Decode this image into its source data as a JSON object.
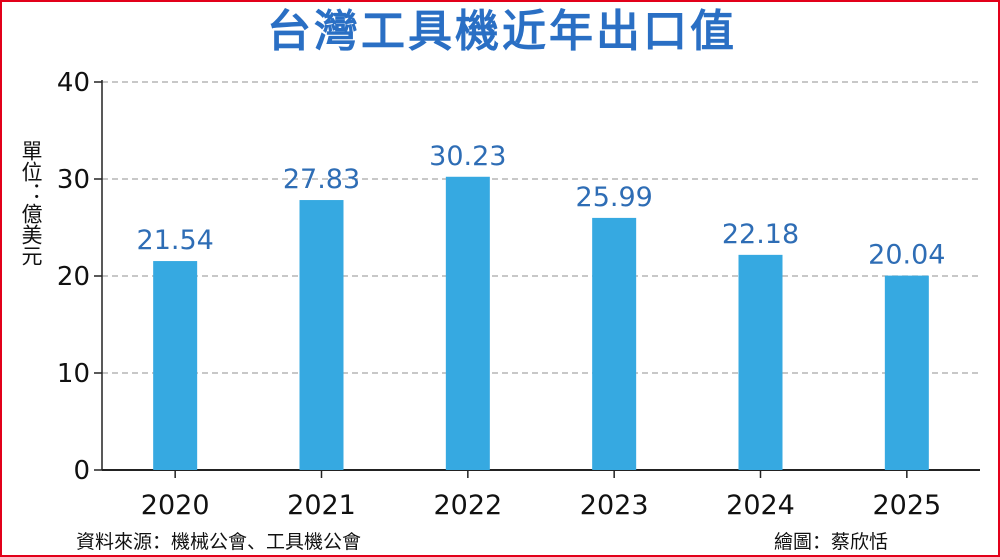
{
  "title": "台灣工具機近年出口值",
  "unit_label": "單位：億美元",
  "source": "資料來源：機械公會、工具機公會",
  "credit": "繪圖：蔡欣恬",
  "colors": {
    "bar": "#36a9e1",
    "value_label": "#2e6db5",
    "title": "#2a6fc4",
    "border": "#e2001a",
    "grid": "#a8a8a8"
  },
  "chart_data": {
    "type": "bar",
    "title": "台灣工具機近年出口值",
    "xlabel": "",
    "ylabel": "單位：億美元",
    "categories": [
      "2020",
      "2021",
      "2022",
      "2023",
      "2024",
      "2025"
    ],
    "values": [
      21.54,
      27.83,
      30.23,
      25.99,
      22.18,
      20.04
    ],
    "value_labels": [
      "21.54",
      "27.83",
      "30.23",
      "25.99",
      "22.18",
      "20.04"
    ],
    "ylim": [
      0,
      40
    ],
    "yticks": [
      0,
      10,
      20,
      30,
      40
    ],
    "grid": "horizontal dashed",
    "legend": "none"
  }
}
